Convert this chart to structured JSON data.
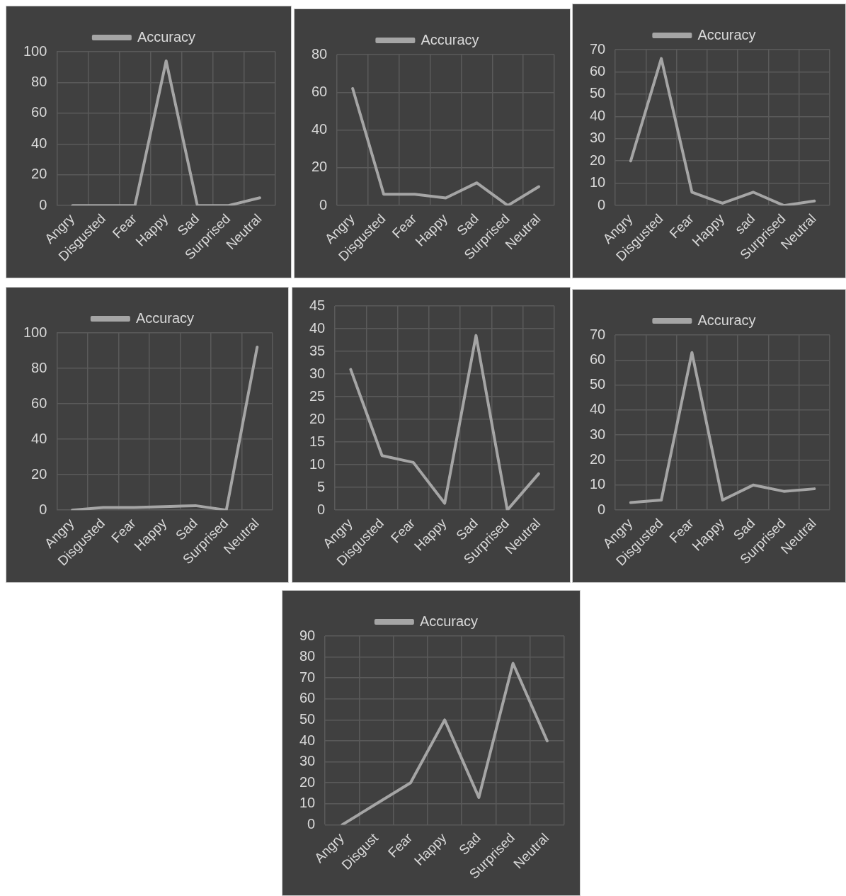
{
  "chart_data": [
    {
      "type": "line",
      "categories": [
        "Angry",
        "Disgusted",
        "Fear",
        "Happy",
        "Sad",
        "Surprised",
        "Neutral"
      ],
      "series": [
        {
          "name": "Accuracy",
          "color": "#a5a5a5",
          "values": [
            0,
            0,
            0,
            94,
            0,
            0,
            5
          ]
        }
      ],
      "ylim": [
        0,
        100
      ],
      "yticks": [
        0,
        20,
        40,
        60,
        80,
        100
      ],
      "grid": true,
      "legend": "top",
      "marker": "none"
    },
    {
      "type": "line",
      "categories": [
        "Angry",
        "Disgusted",
        "Fear",
        "Happy",
        "Sad",
        "Surprised",
        "Neutral"
      ],
      "series": [
        {
          "name": "Accuracy",
          "color": "#a5a5a5",
          "values": [
            62,
            6,
            6,
            4,
            12,
            0,
            10
          ]
        }
      ],
      "ylim": [
        0,
        80
      ],
      "yticks": [
        0,
        20,
        40,
        60,
        80
      ],
      "grid": true,
      "legend": "top",
      "marker": "none"
    },
    {
      "type": "line",
      "categories": [
        "Angry",
        "Disgusted",
        "Fear",
        "Happy",
        "sad",
        "Surprised",
        "Neutral"
      ],
      "series": [
        {
          "name": "Accuracy",
          "color": "#a5a5a5",
          "values": [
            20,
            66,
            6,
            1,
            6,
            0,
            2
          ]
        }
      ],
      "ylim": [
        0,
        70
      ],
      "yticks": [
        0,
        10,
        20,
        30,
        40,
        50,
        60,
        70
      ],
      "grid": true,
      "legend": "top",
      "marker": "none"
    },
    {
      "type": "line",
      "categories": [
        "Angry",
        "Disgusted",
        "Fear",
        "Happy",
        "Sad",
        "Surprised",
        "Neutral"
      ],
      "series": [
        {
          "name": "Accuracy",
          "color": "#a5a5a5",
          "values": [
            0,
            1.5,
            1.5,
            2,
            2.5,
            0,
            92
          ]
        }
      ],
      "ylim": [
        0,
        100
      ],
      "yticks": [
        0,
        20,
        40,
        60,
        80,
        100
      ],
      "grid": true,
      "legend": "top",
      "marker": "none"
    },
    {
      "type": "line",
      "categories": [
        "Angry",
        "Disgusted",
        "Fear",
        "Happy",
        "Sad",
        "Surprised",
        "Neutral"
      ],
      "series": [
        {
          "color": "#a5a5a5",
          "values": [
            31,
            12,
            10.5,
            1.5,
            38.5,
            0,
            8
          ]
        }
      ],
      "ylim": [
        0,
        45
      ],
      "yticks": [
        0,
        5,
        10,
        15,
        20,
        25,
        30,
        35,
        40,
        45
      ],
      "grid": true,
      "marker": "none"
    },
    {
      "type": "line",
      "categories": [
        "Angry",
        "Disgusted",
        "Fear",
        "Happy",
        "Sad",
        "Surprised",
        "Neutral"
      ],
      "series": [
        {
          "name": "Accuracy",
          "color": "#a5a5a5",
          "values": [
            3,
            4,
            63,
            4,
            10,
            7.5,
            8.5
          ]
        }
      ],
      "ylim": [
        0,
        70
      ],
      "yticks": [
        0,
        10,
        20,
        30,
        40,
        50,
        60,
        70
      ],
      "grid": true,
      "legend": "top",
      "marker": "none"
    },
    {
      "type": "line",
      "categories": [
        "Angry",
        "Disgust",
        "Fear",
        "Happy",
        "Sad",
        "Surprised",
        "Neutral"
      ],
      "series": [
        {
          "name": "Accuracy",
          "color": "#a5a5a5",
          "values": [
            0,
            10,
            20,
            50,
            13,
            77,
            40
          ]
        }
      ],
      "ylim": [
        0,
        90
      ],
      "yticks": [
        0,
        10,
        20,
        30,
        40,
        50,
        60,
        70,
        80,
        90
      ],
      "grid": true,
      "legend": "top",
      "marker": "none"
    }
  ]
}
